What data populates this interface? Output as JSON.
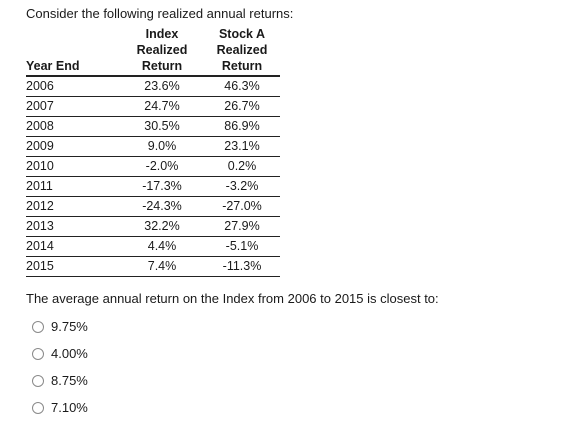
{
  "intro": "Consider the following realized annual returns:",
  "table": {
    "headers": {
      "year": "Year End",
      "index_line1": "Index",
      "index_line2": "Realized",
      "index_line3": "Return",
      "stock_line1": "Stock A",
      "stock_line2": "Realized",
      "stock_line3": "Return"
    },
    "rows": [
      {
        "year": "2006",
        "index": "23.6%",
        "stock": "46.3%"
      },
      {
        "year": "2007",
        "index": "24.7%",
        "stock": "26.7%"
      },
      {
        "year": "2008",
        "index": "30.5%",
        "stock": "86.9%"
      },
      {
        "year": "2009",
        "index": "9.0%",
        "stock": "23.1%"
      },
      {
        "year": "2010",
        "index": "-2.0%",
        "stock": "0.2%"
      },
      {
        "year": "2011",
        "index": "-17.3%",
        "stock": "-3.2%"
      },
      {
        "year": "2012",
        "index": "-24.3%",
        "stock": "-27.0%"
      },
      {
        "year": "2013",
        "index": "32.2%",
        "stock": "27.9%"
      },
      {
        "year": "2014",
        "index": "4.4%",
        "stock": "-5.1%"
      },
      {
        "year": "2015",
        "index": "7.4%",
        "stock": "-11.3%"
      }
    ]
  },
  "question": "The average annual return on the Index from 2006 to 2015 is closest to:",
  "options": [
    {
      "label": "9.75%"
    },
    {
      "label": "4.00%"
    },
    {
      "label": "8.75%"
    },
    {
      "label": "7.10%"
    }
  ]
}
